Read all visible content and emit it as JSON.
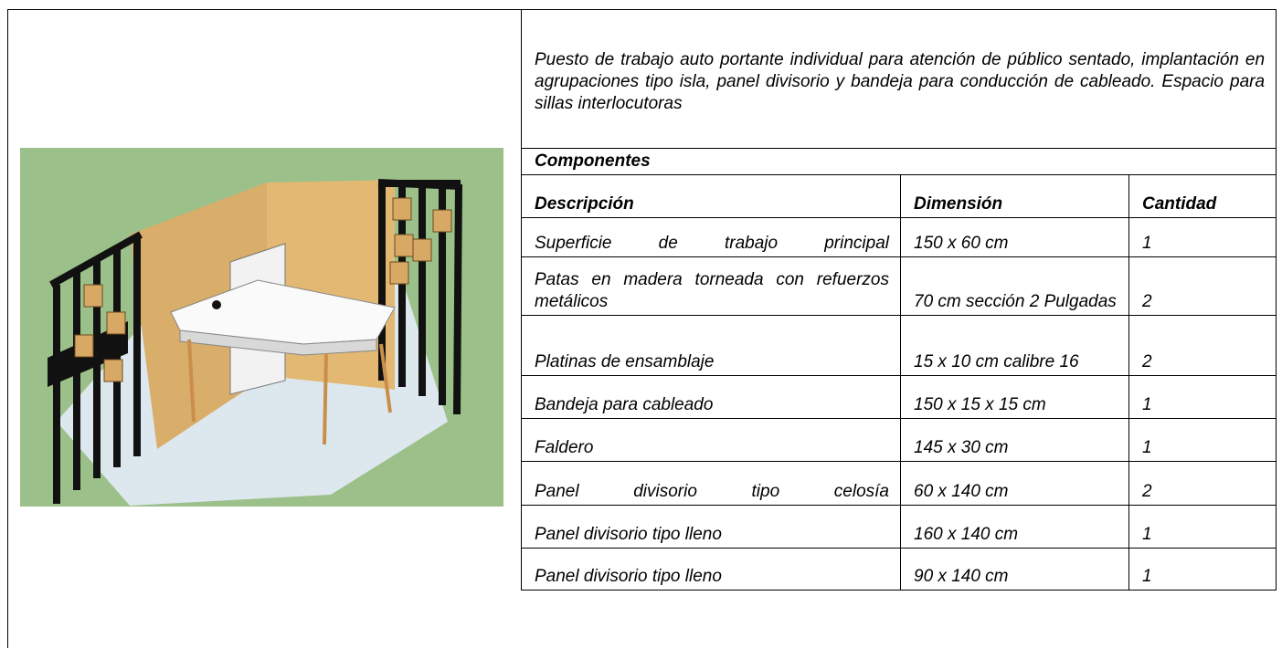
{
  "description": "Puesto de trabajo auto portante individual para atención de público sentado, implantación en agrupaciones tipo isla, panel divisorio y bandeja para conducción de cableado. Espacio para sillas interlocutoras",
  "components_title": "Componentes",
  "table": {
    "header": [
      "Descripción",
      "Dimensión",
      "Cantidad"
    ],
    "rows": [
      [
        "Superficie de trabajo principal",
        "150 x 60 cm",
        "1"
      ],
      [
        "Patas en madera torneada con refuerzos metálicos",
        "70 cm sección 2 Pulgadas",
        "2"
      ],
      [
        "Platinas de ensamblaje",
        "15 x 10 cm calibre 16",
        "2"
      ],
      [
        "Bandeja para cableado",
        "150 x 15 x 15 cm",
        "1"
      ],
      [
        "Faldero",
        "145 x 30 cm",
        "1"
      ],
      [
        "Panel divisorio tipo celosía",
        "60 x 140 cm",
        "2"
      ],
      [
        "Panel divisorio tipo lleno",
        "160 x 140 cm",
        "1"
      ],
      [
        "Panel divisorio tipo lleno",
        "90 x 140 cm",
        "1"
      ]
    ]
  }
}
